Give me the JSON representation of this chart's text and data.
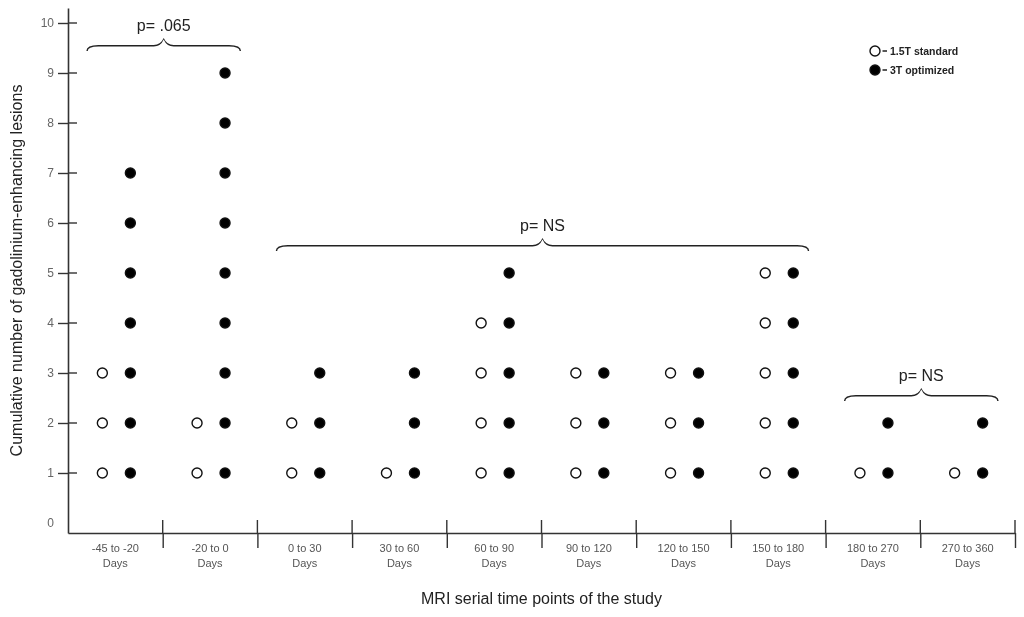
{
  "chart_data": {
    "type": "scatter",
    "xlabel": "MRI serial time points of the study",
    "ylabel": "Cumulative number of gadolinium-enhancing lesions",
    "categories": [
      "-45 to -20 Days",
      "-20 to 0 Days",
      "0 to 30 Days",
      "30 to 60 Days",
      "60 to 90 Days",
      "90 to 120 Days",
      "120 to 150 Days",
      "150 to 180 Days",
      "180 to 270 Days",
      "270 to 360 Days"
    ],
    "series": [
      {
        "name": "1.5T standard",
        "color": "#ffffff",
        "x": [
          "-45 to -20 Days",
          "-45 to -20 Days",
          "-45 to -20 Days",
          "-20 to 0 Days",
          "-20 to 0 Days",
          "0 to 30 Days",
          "0 to 30 Days",
          "30 to 60 Days",
          "60 to 90 Days",
          "60 to 90 Days",
          "60 to 90 Days",
          "60 to 90 Days",
          "90 to 120 Days",
          "90 to 120 Days",
          "90 to 120 Days",
          "120 to 150 Days",
          "120 to 150 Days",
          "120 to 150 Days",
          "150 to 180 Days",
          "150 to 180 Days",
          "150 to 180 Days",
          "150 to 180 Days",
          "150 to 180 Days",
          "180 to 270 Days",
          "270 to 360 Days"
        ],
        "values": [
          1,
          2,
          3,
          1,
          2,
          1,
          2,
          1,
          1,
          2,
          3,
          4,
          1,
          2,
          3,
          1,
          2,
          3,
          1,
          2,
          3,
          4,
          5,
          1,
          1
        ]
      },
      {
        "name": "3T optimized",
        "color": "#000000",
        "x": [
          "-45 to -20 Days",
          "-45 to -20 Days",
          "-45 to -20 Days",
          "-45 to -20 Days",
          "-45 to -20 Days",
          "-45 to -20 Days",
          "-45 to -20 Days",
          "-20 to 0 Days",
          "-20 to 0 Days",
          "-20 to 0 Days",
          "-20 to 0 Days",
          "-20 to 0 Days",
          "-20 to 0 Days",
          "-20 to 0 Days",
          "-20 to 0 Days",
          "-20 to 0 Days",
          "0 to 30 Days",
          "0 to 30 Days",
          "0 to 30 Days",
          "30 to 60 Days",
          "30 to 60 Days",
          "30 to 60 Days",
          "60 to 90 Days",
          "60 to 90 Days",
          "60 to 90 Days",
          "60 to 90 Days",
          "60 to 90 Days",
          "90 to 120 Days",
          "90 to 120 Days",
          "90 to 120 Days",
          "120 to 150 Days",
          "120 to 150 Days",
          "120 to 150 Days",
          "150 to 180 Days",
          "150 to 180 Days",
          "150 to 180 Days",
          "150 to 180 Days",
          "150 to 180 Days",
          "180 to 270 Days",
          "180 to 270 Days",
          "270 to 360 Days",
          "270 to 360 Days"
        ],
        "values": [
          1,
          2,
          3,
          4,
          5,
          6,
          7,
          1,
          2,
          3,
          4,
          5,
          6,
          7,
          8,
          9,
          1,
          2,
          3,
          1,
          2,
          3,
          1,
          2,
          3,
          4,
          5,
          1,
          2,
          3,
          1,
          2,
          3,
          1,
          2,
          3,
          4,
          5,
          1,
          2,
          1,
          2
        ]
      }
    ],
    "ylim": [
      -0.2,
      10.3
    ],
    "yticks": [
      0,
      1,
      2,
      3,
      4,
      5,
      6,
      7,
      8,
      9,
      10
    ],
    "marker": "circle",
    "legend": "top right",
    "annotations": [
      "p= .065",
      "p= NS",
      "p= NS"
    ]
  }
}
